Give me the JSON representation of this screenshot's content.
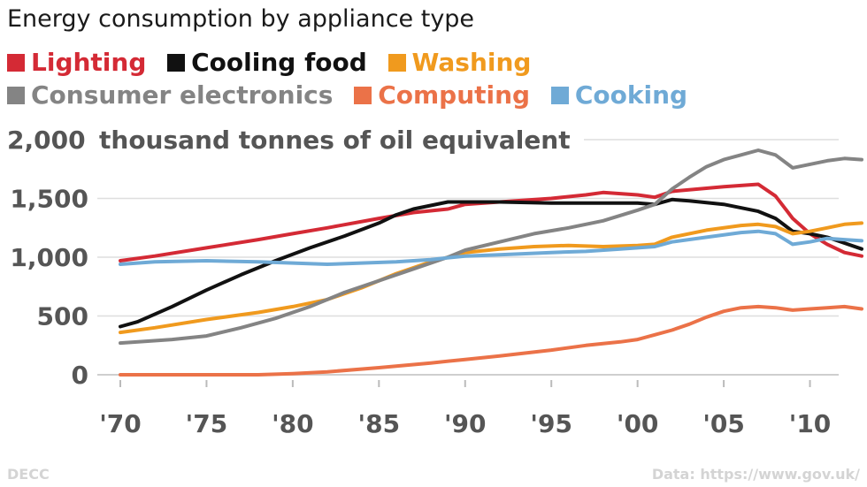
{
  "chart_data": {
    "type": "line",
    "title": "Energy consumption by appliance type",
    "unit_label": "thousand tonnes of oil equivalent",
    "xlim": [
      1970,
      2013
    ],
    "ylim": [
      0,
      2000
    ],
    "y_ticks": [
      {
        "value": 0,
        "label": "0"
      },
      {
        "value": 500,
        "label": "500"
      },
      {
        "value": 1000,
        "label": "1,000"
      },
      {
        "value": 1500,
        "label": "1,500"
      },
      {
        "value": 2000,
        "label": "2,000"
      }
    ],
    "x_ticks": [
      {
        "value": 1970,
        "label": "'70"
      },
      {
        "value": 1975,
        "label": "'75"
      },
      {
        "value": 1980,
        "label": "'80"
      },
      {
        "value": 1985,
        "label": "'85"
      },
      {
        "value": 1990,
        "label": "'90"
      },
      {
        "value": 1995,
        "label": "'95"
      },
      {
        "value": 2000,
        "label": "'00"
      },
      {
        "value": 2005,
        "label": "'05"
      },
      {
        "value": 2010,
        "label": "'10"
      }
    ],
    "grid": true,
    "legend_position": "top-left",
    "series": [
      {
        "name": "Lighting",
        "color": "#d42a35",
        "points": [
          [
            1970,
            970
          ],
          [
            1972,
            1010
          ],
          [
            1975,
            1080
          ],
          [
            1978,
            1150
          ],
          [
            1980,
            1200
          ],
          [
            1982,
            1250
          ],
          [
            1985,
            1330
          ],
          [
            1987,
            1380
          ],
          [
            1989,
            1410
          ],
          [
            1990,
            1450
          ],
          [
            1992,
            1470
          ],
          [
            1995,
            1500
          ],
          [
            1997,
            1530
          ],
          [
            1998,
            1550
          ],
          [
            2000,
            1530
          ],
          [
            2001,
            1510
          ],
          [
            2002,
            1560
          ],
          [
            2005,
            1600
          ],
          [
            2007,
            1620
          ],
          [
            2008,
            1520
          ],
          [
            2009,
            1330
          ],
          [
            2010,
            1200
          ],
          [
            2011,
            1110
          ],
          [
            2012,
            1040
          ],
          [
            2013,
            1010
          ]
        ]
      },
      {
        "name": "Cooling food",
        "color": "#111111",
        "points": [
          [
            1970,
            410
          ],
          [
            1971,
            450
          ],
          [
            1973,
            580
          ],
          [
            1975,
            720
          ],
          [
            1977,
            850
          ],
          [
            1979,
            970
          ],
          [
            1981,
            1080
          ],
          [
            1983,
            1180
          ],
          [
            1985,
            1290
          ],
          [
            1986,
            1360
          ],
          [
            1987,
            1410
          ],
          [
            1988,
            1440
          ],
          [
            1989,
            1470
          ],
          [
            1990,
            1470
          ],
          [
            1992,
            1470
          ],
          [
            1995,
            1460
          ],
          [
            1998,
            1460
          ],
          [
            2000,
            1460
          ],
          [
            2001,
            1450
          ],
          [
            2002,
            1490
          ],
          [
            2003,
            1480
          ],
          [
            2005,
            1450
          ],
          [
            2007,
            1390
          ],
          [
            2008,
            1330
          ],
          [
            2009,
            1220
          ],
          [
            2010,
            1200
          ],
          [
            2011,
            1170
          ],
          [
            2012,
            1120
          ],
          [
            2013,
            1070
          ]
        ]
      },
      {
        "name": "Washing",
        "color": "#f09a1e",
        "points": [
          [
            1970,
            360
          ],
          [
            1972,
            400
          ],
          [
            1975,
            470
          ],
          [
            1978,
            530
          ],
          [
            1980,
            580
          ],
          [
            1982,
            640
          ],
          [
            1984,
            740
          ],
          [
            1986,
            860
          ],
          [
            1988,
            960
          ],
          [
            1990,
            1040
          ],
          [
            1992,
            1070
          ],
          [
            1994,
            1090
          ],
          [
            1996,
            1100
          ],
          [
            1998,
            1090
          ],
          [
            2000,
            1100
          ],
          [
            2001,
            1110
          ],
          [
            2002,
            1170
          ],
          [
            2004,
            1230
          ],
          [
            2006,
            1270
          ],
          [
            2007,
            1280
          ],
          [
            2008,
            1260
          ],
          [
            2009,
            1200
          ],
          [
            2010,
            1220
          ],
          [
            2011,
            1250
          ],
          [
            2012,
            1280
          ],
          [
            2013,
            1290
          ]
        ]
      },
      {
        "name": "Consumer electronics",
        "color": "#848484",
        "points": [
          [
            1970,
            270
          ],
          [
            1973,
            300
          ],
          [
            1975,
            330
          ],
          [
            1977,
            400
          ],
          [
            1979,
            480
          ],
          [
            1981,
            580
          ],
          [
            1983,
            700
          ],
          [
            1985,
            800
          ],
          [
            1987,
            900
          ],
          [
            1989,
            1000
          ],
          [
            1990,
            1060
          ],
          [
            1992,
            1130
          ],
          [
            1994,
            1200
          ],
          [
            1996,
            1250
          ],
          [
            1998,
            1310
          ],
          [
            2000,
            1400
          ],
          [
            2001,
            1450
          ],
          [
            2002,
            1580
          ],
          [
            2003,
            1680
          ],
          [
            2004,
            1770
          ],
          [
            2005,
            1830
          ],
          [
            2006,
            1870
          ],
          [
            2007,
            1910
          ],
          [
            2008,
            1870
          ],
          [
            2009,
            1760
          ],
          [
            2010,
            1790
          ],
          [
            2011,
            1820
          ],
          [
            2012,
            1840
          ],
          [
            2013,
            1830
          ]
        ]
      },
      {
        "name": "Computing",
        "color": "#eb7248",
        "points": [
          [
            1970,
            0
          ],
          [
            1975,
            0
          ],
          [
            1978,
            0
          ],
          [
            1980,
            10
          ],
          [
            1982,
            25
          ],
          [
            1985,
            60
          ],
          [
            1988,
            100
          ],
          [
            1990,
            130
          ],
          [
            1992,
            160
          ],
          [
            1995,
            210
          ],
          [
            1997,
            250
          ],
          [
            1999,
            280
          ],
          [
            2000,
            300
          ],
          [
            2001,
            340
          ],
          [
            2002,
            380
          ],
          [
            2003,
            430
          ],
          [
            2004,
            490
          ],
          [
            2005,
            540
          ],
          [
            2006,
            570
          ],
          [
            2007,
            580
          ],
          [
            2008,
            570
          ],
          [
            2009,
            550
          ],
          [
            2010,
            560
          ],
          [
            2011,
            570
          ],
          [
            2012,
            580
          ],
          [
            2013,
            560
          ]
        ]
      },
      {
        "name": "Cooking",
        "color": "#6faad6",
        "points": [
          [
            1970,
            940
          ],
          [
            1972,
            960
          ],
          [
            1975,
            970
          ],
          [
            1978,
            960
          ],
          [
            1980,
            950
          ],
          [
            1982,
            940
          ],
          [
            1984,
            950
          ],
          [
            1986,
            960
          ],
          [
            1988,
            980
          ],
          [
            1990,
            1010
          ],
          [
            1992,
            1020
          ],
          [
            1995,
            1040
          ],
          [
            1997,
            1050
          ],
          [
            1999,
            1070
          ],
          [
            2000,
            1080
          ],
          [
            2001,
            1090
          ],
          [
            2002,
            1130
          ],
          [
            2004,
            1170
          ],
          [
            2006,
            1210
          ],
          [
            2007,
            1220
          ],
          [
            2008,
            1200
          ],
          [
            2009,
            1110
          ],
          [
            2010,
            1130
          ],
          [
            2011,
            1160
          ],
          [
            2012,
            1150
          ],
          [
            2013,
            1140
          ]
        ]
      }
    ]
  },
  "footer": {
    "source_left": "DECC",
    "source_right": "Data: https://www.gov.uk/"
  }
}
